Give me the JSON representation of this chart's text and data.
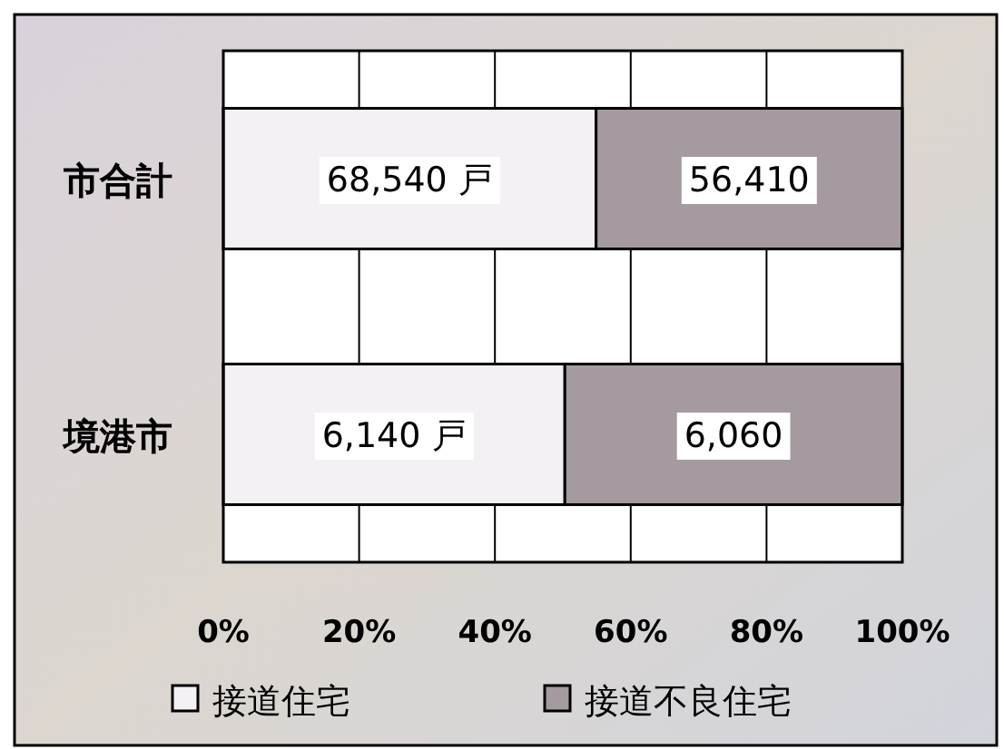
{
  "chart_data": {
    "type": "bar",
    "orientation": "horizontal",
    "stacked": true,
    "categories": [
      "市合計",
      "境港市"
    ],
    "series": [
      {
        "name": "接道住宅",
        "color": "#f3f1f4",
        "values": [
          54.9,
          50.3
        ]
      },
      {
        "name": "接道不良住宅",
        "color": "#a59aa0",
        "values": [
          45.1,
          49.7
        ]
      }
    ],
    "annotations": [
      "68,540 戸",
      "56,410",
      "6,140 戸",
      "6,060"
    ],
    "xlim": [
      0,
      100
    ],
    "xticks": [
      {
        "value": 0,
        "label": "0%"
      },
      {
        "value": 20,
        "label": "20%"
      },
      {
        "value": 40,
        "label": "40%"
      },
      {
        "value": 60,
        "label": "60%"
      },
      {
        "value": 80,
        "label": "80%"
      },
      {
        "value": 100,
        "label": "100%"
      }
    ],
    "grid": "x",
    "legend": "bottom"
  }
}
